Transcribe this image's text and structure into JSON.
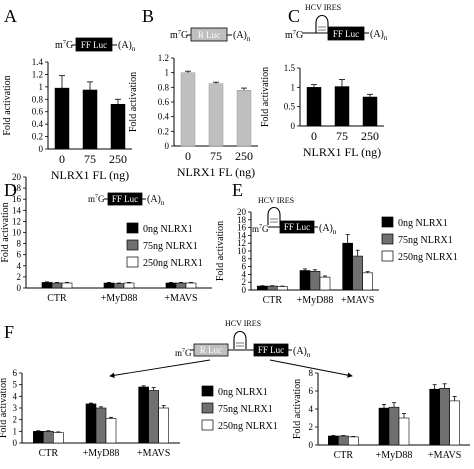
{
  "figure": {
    "panel_letters": [
      "A",
      "B",
      "C",
      "D",
      "E",
      "F"
    ]
  },
  "construct_labels": {
    "cap": "m⁷G",
    "cap_main": "m",
    "cap_sup": "7",
    "cap_tail": "G",
    "ff_luc": "FF Luc",
    "r_luc": "R Luc",
    "poly_a": "(A)",
    "poly_a_sub": "n",
    "hcv_ires": "HCV IRES"
  },
  "colors": {
    "black": "#000000",
    "gray": "#707070",
    "light_gray": "#bfbfbf",
    "white": "#ffffff"
  },
  "chart_data": [
    {
      "panel": "A",
      "type": "bar",
      "categories": [
        "0",
        "75",
        "250"
      ],
      "values": [
        0.98,
        0.95,
        0.72
      ],
      "errors": [
        0.2,
        0.13,
        0.08
      ],
      "color": "#000000",
      "xlabel": "NLRX1 FL (ng)",
      "ylabel": "Fold activation",
      "ylim": [
        0,
        1.4
      ],
      "yticks": [
        "0",
        "0.2",
        "0.4",
        "0.6",
        "0.8",
        "1",
        "1.2",
        "1.4"
      ],
      "construct": "FF Luc"
    },
    {
      "panel": "B",
      "type": "bar",
      "categories": [
        "0",
        "75",
        "250"
      ],
      "values": [
        1.0,
        0.85,
        0.76
      ],
      "errors": [
        0.02,
        0.02,
        0.03
      ],
      "color": "#bfbfbf",
      "xlabel": "NLRX1 FL (ng)",
      "ylabel": "Fold activation",
      "ylim": [
        0,
        1.2
      ],
      "yticks": [
        "0",
        "0.2",
        "0.4",
        "0.6",
        "0.8",
        "1",
        "1.2"
      ],
      "construct": "R Luc"
    },
    {
      "panel": "C",
      "type": "bar",
      "categories": [
        "0",
        "75",
        "250"
      ],
      "values": [
        1.0,
        1.02,
        0.75
      ],
      "errors": [
        0.07,
        0.18,
        0.07
      ],
      "color": "#000000",
      "xlabel": "NLRX1 FL (ng)",
      "ylabel": "Fold activation",
      "ylim": [
        0,
        1.5
      ],
      "yticks": [
        "0",
        "0.5",
        "1",
        "1.5"
      ],
      "construct": "HCV IRES FF Luc"
    },
    {
      "panel": "D",
      "type": "bar",
      "categories": [
        "CTR",
        "+MyD88",
        "+MAVS"
      ],
      "series": [
        {
          "name": "0ng NLRX1",
          "color": "#000000",
          "values": [
            1.0,
            0.9,
            0.9
          ],
          "errors": [
            0.1,
            0.1,
            0.1
          ]
        },
        {
          "name": "75ng NLRX1",
          "color": "#707070",
          "values": [
            0.9,
            0.8,
            0.9
          ],
          "errors": [
            0.1,
            0.1,
            0.1
          ]
        },
        {
          "name": "250ng NLRX1",
          "color": "#ffffff",
          "values": [
            0.9,
            0.9,
            0.9
          ],
          "errors": [
            0.1,
            0.1,
            0.1
          ]
        }
      ],
      "ylabel": "Fold activation",
      "ylim": [
        0,
        20
      ],
      "yticks": [
        "0",
        "2",
        "4",
        "6",
        "8",
        "10",
        "12",
        "14",
        "16",
        "18",
        "20"
      ],
      "construct": "FF Luc"
    },
    {
      "panel": "E",
      "type": "bar",
      "categories": [
        "CTR",
        "+MyD88",
        "+MAVS"
      ],
      "series": [
        {
          "name": "0ng NLRX1",
          "color": "#000000",
          "values": [
            1.0,
            5.0,
            12.0
          ],
          "errors": [
            0.1,
            0.4,
            2.2
          ]
        },
        {
          "name": "75ng NLRX1",
          "color": "#707070",
          "values": [
            1.0,
            4.8,
            8.7
          ],
          "errors": [
            0.1,
            0.4,
            1.5
          ]
        },
        {
          "name": "250ng NLRX1",
          "color": "#ffffff",
          "values": [
            0.9,
            3.3,
            4.4
          ],
          "errors": [
            0.1,
            0.3,
            0.3
          ]
        }
      ],
      "ylabel": "Fold activation",
      "ylim": [
        0,
        20
      ],
      "yticks": [
        "0",
        "2",
        "4",
        "6",
        "8",
        "10",
        "12",
        "14",
        "16",
        "18",
        "20"
      ],
      "construct": "HCV IRES FF Luc"
    },
    {
      "panel": "F-left",
      "type": "bar",
      "categories": [
        "CTR",
        "+MyD88",
        "+MAVS"
      ],
      "series": [
        {
          "name": "0ng NLRX1",
          "color": "#000000",
          "values": [
            1.0,
            3.35,
            4.8
          ],
          "errors": [
            0.05,
            0.07,
            0.1
          ]
        },
        {
          "name": "75ng NLRX1",
          "color": "#707070",
          "values": [
            1.0,
            3.0,
            4.5
          ],
          "errors": [
            0.05,
            0.1,
            0.25
          ]
        },
        {
          "name": "250ng NLRX1",
          "color": "#ffffff",
          "values": [
            0.9,
            2.1,
            3.0
          ],
          "errors": [
            0.05,
            0.1,
            0.2
          ]
        }
      ],
      "ylabel": "Fold activation",
      "ylim": [
        0,
        6
      ],
      "yticks": [
        "0",
        "1",
        "2",
        "3",
        "4",
        "5",
        "6"
      ],
      "construct": "R Luc"
    },
    {
      "panel": "F-right",
      "type": "bar",
      "categories": [
        "CTR",
        "+MyD88",
        "+MAVS"
      ],
      "series": [
        {
          "name": "0ng NLRX1",
          "color": "#000000",
          "values": [
            1.0,
            4.1,
            6.2
          ],
          "errors": [
            0.05,
            0.4,
            0.5
          ]
        },
        {
          "name": "75ng NLRX1",
          "color": "#707070",
          "values": [
            1.0,
            4.2,
            6.3
          ],
          "errors": [
            0.05,
            0.5,
            0.5
          ]
        },
        {
          "name": "250ng NLRX1",
          "color": "#ffffff",
          "values": [
            0.9,
            3.0,
            4.9
          ],
          "errors": [
            0.05,
            0.5,
            0.5
          ]
        }
      ],
      "ylabel": "Fold activation",
      "ylim": [
        0,
        8
      ],
      "yticks": [
        "0",
        "2",
        "4",
        "6",
        "8"
      ],
      "construct": "HCV IRES FF Luc"
    }
  ]
}
